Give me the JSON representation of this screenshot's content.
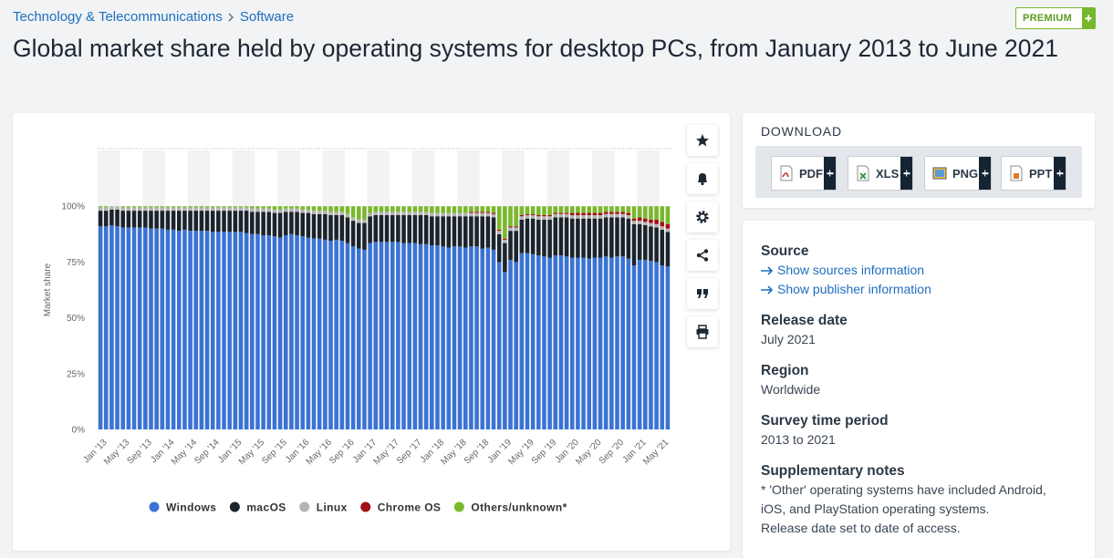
{
  "breadcrumb": {
    "category": "Technology & Telecommunications",
    "subcategory": "Software"
  },
  "badge": "PREMIUM",
  "title": "Global market share held by operating systems for desktop PCs, from January 2013 to June 2021",
  "chart_data": {
    "type": "stacked_bar",
    "y_label": "Market share",
    "categories": [
      "Jan '13",
      null,
      null,
      null,
      "May '13",
      null,
      null,
      null,
      "Sep '13",
      null,
      null,
      null,
      "Jan '14",
      null,
      null,
      null,
      "May '14",
      null,
      null,
      null,
      "Sep '14",
      null,
      null,
      null,
      "Jan '15",
      null,
      null,
      null,
      "May '15",
      null,
      null,
      null,
      "Sep '15",
      null,
      null,
      null,
      "Jan '16",
      null,
      null,
      null,
      "May '16",
      null,
      null,
      null,
      "Sep '16",
      null,
      null,
      null,
      "Jan '17",
      null,
      null,
      null,
      "May '17",
      null,
      null,
      null,
      "Sep '17",
      null,
      null,
      null,
      "Jan '18",
      null,
      null,
      null,
      "May '18",
      null,
      null,
      null,
      "Sep '18",
      null,
      null,
      null,
      "Jan '19",
      null,
      null,
      null,
      "May '19",
      null,
      null,
      null,
      "Sep '19",
      null,
      null,
      null,
      "Jan '20",
      null,
      null,
      null,
      "May '20",
      null,
      null,
      null,
      "Sep '20",
      null,
      null,
      null,
      "Jan '21",
      null,
      null,
      null,
      "May '21",
      null
    ],
    "series": [
      {
        "name": "Windows",
        "color": "#3a73d4",
        "values": [
          91,
          91,
          91.5,
          91,
          90.5,
          90.5,
          90.5,
          90.5,
          90.5,
          90,
          90,
          90,
          89.5,
          89.5,
          89,
          89.5,
          89,
          89,
          89,
          89,
          88.5,
          88.5,
          88.5,
          88.5,
          88.5,
          88.5,
          88,
          87.5,
          87.5,
          87,
          87,
          86.5,
          86,
          87,
          87.5,
          87,
          86.5,
          86,
          85.5,
          85.5,
          85,
          84.5,
          85,
          84.5,
          83.5,
          82,
          81,
          80.5,
          83.5,
          84,
          84,
          84,
          84,
          84,
          83.5,
          83.5,
          83.5,
          83,
          83,
          82.5,
          82.5,
          82,
          81.5,
          82,
          82,
          81.5,
          82,
          82,
          81,
          81.5,
          80.5,
          75,
          70.5,
          76,
          75,
          79,
          79,
          78.5,
          78,
          77.5,
          77,
          78,
          78,
          77.5,
          77,
          77,
          77,
          76.5,
          77,
          77,
          77.5,
          77,
          77.5,
          77.5,
          76.5,
          73.5,
          76,
          76,
          75.5,
          75,
          73.5,
          73
        ]
      },
      {
        "name": "macOS",
        "color": "#1b232c",
        "values": [
          7,
          7,
          7,
          7.5,
          7.5,
          7.5,
          7.5,
          7.5,
          7.5,
          8,
          8,
          8,
          8.5,
          8.5,
          9,
          8.5,
          9,
          9,
          9,
          9,
          9.5,
          9.5,
          9.5,
          9.5,
          9.5,
          9.5,
          10,
          10,
          10,
          10.5,
          10.5,
          10.5,
          11,
          10.5,
          10,
          10.5,
          10.5,
          11,
          11,
          11,
          11.5,
          11.5,
          11,
          11.5,
          11.5,
          11.5,
          11.5,
          12,
          12,
          12,
          12,
          12,
          12,
          12,
          12.5,
          12.5,
          12.5,
          13,
          13,
          13,
          13,
          13.5,
          14,
          13.5,
          13.5,
          14,
          13.5,
          13.5,
          14.5,
          14,
          14.5,
          12.5,
          13,
          13,
          14,
          15,
          15.5,
          16,
          16,
          16.5,
          17,
          17,
          17,
          17.5,
          17.5,
          17.5,
          17.5,
          18,
          17.5,
          17.5,
          17.5,
          18,
          17.5,
          17.5,
          18,
          18.5,
          16,
          15.5,
          15.5,
          15.5,
          16,
          15.5
        ]
      },
      {
        "name": "Linux",
        "color": "#b4b4b4",
        "values": [
          1.5,
          1.5,
          1.5,
          1.5,
          1.5,
          1.5,
          1.5,
          1.5,
          1.5,
          1.5,
          1.5,
          1.5,
          1.5,
          1.5,
          1.5,
          1.5,
          1.5,
          1.5,
          1.5,
          1.5,
          1.5,
          1.5,
          1.5,
          1.5,
          1.5,
          1.5,
          1.5,
          1.5,
          1.5,
          1.5,
          1.5,
          1.5,
          1.5,
          1.5,
          1.5,
          1.5,
          1.5,
          1.5,
          1.5,
          1.5,
          1.5,
          1.5,
          1.5,
          1.5,
          1.5,
          1.5,
          1.5,
          1.5,
          1.5,
          1.5,
          1.5,
          1.5,
          1.5,
          1.5,
          1.5,
          1.5,
          1.5,
          1.5,
          1.5,
          1.5,
          1.5,
          1.5,
          1.5,
          1.5,
          1.5,
          1.5,
          1.5,
          1.5,
          1.5,
          1.5,
          1.5,
          1.5,
          1.5,
          1.5,
          1.5,
          1.5,
          1.5,
          1.5,
          1.5,
          1.5,
          1.5,
          1.5,
          1.5,
          1.5,
          1.5,
          1.5,
          1.5,
          1.5,
          1.5,
          1.5,
          1.5,
          1.5,
          1.5,
          1.5,
          1.5,
          1.5,
          1.5,
          1.5,
          1.5,
          1.5,
          1.5,
          1.5
        ]
      },
      {
        "name": "Chrome OS",
        "color": "#a30f16",
        "values": [
          0,
          0,
          0,
          0,
          0,
          0,
          0,
          0,
          0,
          0,
          0,
          0,
          0,
          0,
          0,
          0,
          0,
          0,
          0,
          0,
          0,
          0,
          0,
          0,
          0,
          0,
          0,
          0,
          0,
          0,
          0,
          0,
          0,
          0,
          0,
          0,
          0,
          0,
          0,
          0,
          0,
          0,
          0,
          0,
          0,
          0,
          0,
          0,
          0,
          0,
          0,
          0,
          0,
          0,
          0,
          0,
          0,
          0,
          0,
          0,
          0,
          0,
          0,
          0,
          0,
          0,
          0.5,
          0.5,
          0.5,
          0.5,
          0.5,
          0.5,
          0.5,
          0.5,
          0.5,
          0.5,
          0.5,
          0.5,
          0.5,
          0.5,
          0.5,
          0.5,
          0.5,
          0.5,
          1,
          1,
          1,
          1,
          1,
          1,
          1,
          1,
          1,
          1,
          1,
          1,
          1.5,
          1.5,
          1.5,
          2,
          2,
          2
        ]
      },
      {
        "name": "Others/unknown*",
        "color": "#7ab82c",
        "values": [
          0.5,
          0.5,
          0,
          0,
          0.5,
          0.5,
          0.5,
          0.5,
          0.5,
          0.5,
          0.5,
          0.5,
          0.5,
          0.5,
          0.5,
          0.5,
          0.5,
          0.5,
          0.5,
          0.5,
          0.5,
          0.5,
          0.5,
          0.5,
          0.5,
          0.5,
          0.5,
          1,
          1,
          1,
          1,
          1.5,
          1.5,
          1,
          1,
          1,
          1.5,
          1.5,
          2,
          2,
          2,
          2.5,
          2.5,
          2.5,
          3.5,
          5,
          6,
          6,
          3,
          2.5,
          2.5,
          2.5,
          2.5,
          2.5,
          2.5,
          2.5,
          2.5,
          2.5,
          2.5,
          3,
          3,
          3,
          3,
          3,
          3,
          3,
          2.5,
          2.5,
          2.5,
          2.5,
          3,
          10.5,
          14.5,
          9,
          9,
          4,
          3.5,
          3.5,
          4,
          4,
          4,
          3,
          3,
          3,
          3,
          3,
          3,
          3,
          3,
          3,
          2.5,
          2.5,
          2.5,
          2.5,
          3,
          5.5,
          5,
          5.5,
          6,
          6,
          7,
          8
        ]
      }
    ],
    "ylim": [
      0,
      125
    ],
    "yticks": [
      {
        "value": 0,
        "label": "0%"
      },
      {
        "value": 25,
        "label": "25%"
      },
      {
        "value": 50,
        "label": "50%"
      },
      {
        "value": 75,
        "label": "75%"
      },
      {
        "value": 100,
        "label": "100%"
      }
    ],
    "legend": "bottom"
  },
  "download": {
    "heading": "DOWNLOAD",
    "buttons": [
      "PDF",
      "XLS",
      "PNG",
      "PPT"
    ]
  },
  "details": {
    "source": {
      "label": "Source",
      "links": [
        "Show sources information",
        "Show publisher information"
      ]
    },
    "release": {
      "label": "Release date",
      "value": "July 2021"
    },
    "region": {
      "label": "Region",
      "value": "Worldwide"
    },
    "period": {
      "label": "Survey time period",
      "value": "2013 to 2021"
    },
    "notes": {
      "label": "Supplementary notes",
      "lines": [
        "* 'Other' operating systems have included Android, iOS, and PlayStation operating systems.",
        "Release date set to date of access."
      ]
    }
  }
}
